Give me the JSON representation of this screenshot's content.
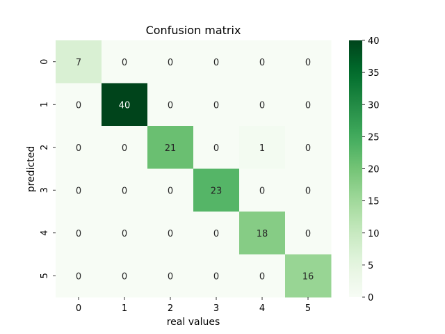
{
  "chart_data": {
    "type": "heatmap",
    "title": "Confusion matrix",
    "xlabel": "real values",
    "ylabel": "predicted",
    "x_categories": [
      "0",
      "1",
      "2",
      "3",
      "4",
      "5"
    ],
    "y_categories": [
      "0",
      "1",
      "2",
      "3",
      "4",
      "5"
    ],
    "values": [
      [
        7,
        0,
        0,
        0,
        0,
        0
      ],
      [
        0,
        40,
        0,
        0,
        0,
        0
      ],
      [
        0,
        0,
        21,
        0,
        1,
        0
      ],
      [
        0,
        0,
        0,
        23,
        0,
        0
      ],
      [
        0,
        0,
        0,
        0,
        18,
        0
      ],
      [
        0,
        0,
        0,
        0,
        0,
        16
      ]
    ],
    "colormap": "Greens",
    "vmin": 0,
    "vmax": 40,
    "colorbar_ticks": [
      0,
      5,
      10,
      15,
      20,
      25,
      30,
      35,
      40
    ],
    "annotations": true,
    "grid": false
  }
}
